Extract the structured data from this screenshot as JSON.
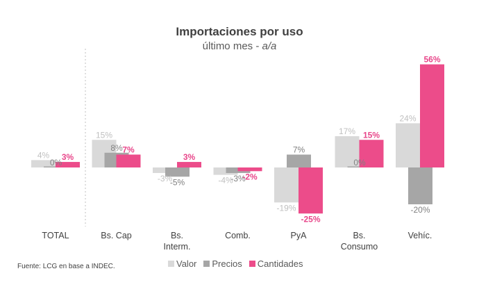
{
  "chart_data": {
    "type": "bar",
    "title": "Importaciones por uso",
    "subtitle_main": "último mes - ",
    "subtitle_italic": "a/a",
    "categories": [
      "TOTAL",
      "Bs. Cap",
      "Bs. Interm.",
      "Comb.",
      "PyA",
      "Bs. Consumo",
      "Vehíc."
    ],
    "category_lines": [
      [
        "TOTAL"
      ],
      [
        "Bs. Cap"
      ],
      [
        "Bs.",
        "Interm."
      ],
      [
        "Comb."
      ],
      [
        "PyA"
      ],
      [
        "Bs.",
        "Consumo"
      ],
      [
        "Vehíc."
      ]
    ],
    "series": [
      {
        "name": "Valor",
        "values": [
          4,
          15,
          -3,
          -4,
          -19,
          17,
          24
        ],
        "color": "#d9d9d9",
        "label_color": "#bfbfbf"
      },
      {
        "name": "Precios",
        "values": [
          0,
          8,
          -5,
          -3,
          7,
          0,
          -20
        ],
        "color": "#a6a6a6",
        "label_color": "#808080"
      },
      {
        "name": "Cantidades",
        "values": [
          3,
          7,
          3,
          -2,
          -25,
          15,
          56
        ],
        "color": "#ec4c8a",
        "label_color": "#e8468a"
      }
    ],
    "value_suffix": "%",
    "grid": false,
    "legend_position": "bottom",
    "separator_after": "TOTAL"
  },
  "source": "Fuente: LCG en base a INDEC."
}
